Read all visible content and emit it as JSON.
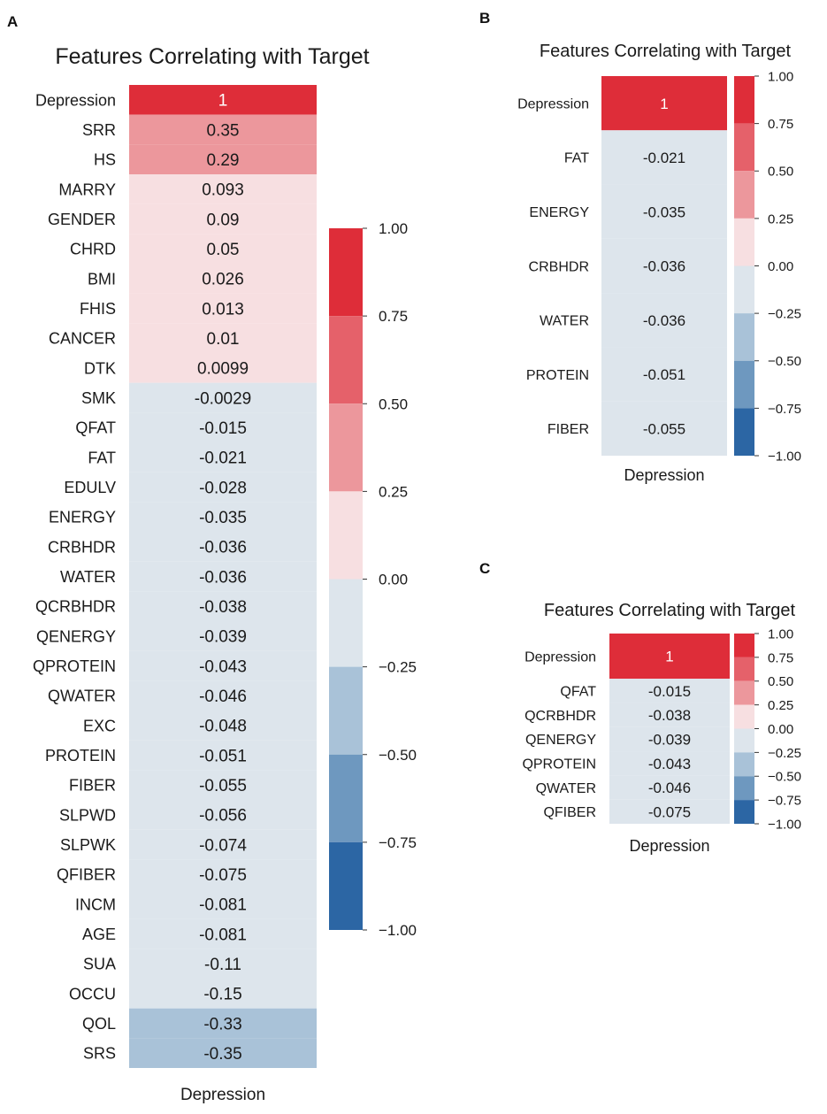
{
  "colorbar": {
    "ticks": [
      1.0,
      0.75,
      0.5,
      0.25,
      0.0,
      -0.25,
      -0.5,
      -0.75,
      -1.0
    ],
    "tick_labels": [
      "1.00",
      "0.75",
      "0.50",
      "0.25",
      "0.00",
      "−0.25",
      "−0.50",
      "−0.75",
      "−1.00"
    ],
    "bins": [
      {
        "from": 0.75,
        "to": 1.0,
        "color": "#de2d39"
      },
      {
        "from": 0.5,
        "to": 0.75,
        "color": "#e5616a"
      },
      {
        "from": 0.25,
        "to": 0.5,
        "color": "#ec979c"
      },
      {
        "from": 0.0,
        "to": 0.25,
        "color": "#f7dfe1"
      },
      {
        "from": -0.25,
        "to": 0.0,
        "color": "#dde5ec"
      },
      {
        "from": -0.5,
        "to": -0.25,
        "color": "#a9c2d8"
      },
      {
        "from": -0.75,
        "to": -0.5,
        "color": "#6e98bf"
      },
      {
        "from": -1.0,
        "to": -0.75,
        "color": "#2c66a4"
      }
    ]
  },
  "chart_data": [
    {
      "panel": "A",
      "type": "heatmap",
      "title": "Features Correlating with Target",
      "xlabel": "Depression",
      "column": "Depression",
      "vlim": [
        -1,
        1
      ],
      "rows": [
        "Depression",
        "SRR",
        "HS",
        "MARRY",
        "GENDER",
        "CHRD",
        "BMI",
        "FHIS",
        "CANCER",
        "DTK",
        "SMK",
        "QFAT",
        "FAT",
        "EDULV",
        "ENERGY",
        "CRBHDR",
        "WATER",
        "QCRBHDR",
        "QENERGY",
        "QPROTEIN",
        "QWATER",
        "EXC",
        "PROTEIN",
        "FIBER",
        "SLPWD",
        "SLPWK",
        "QFIBER",
        "INCM",
        "AGE",
        "SUA",
        "OCCU",
        "QOL",
        "SRS"
      ],
      "values": [
        1,
        0.35,
        0.29,
        0.093,
        0.09,
        0.05,
        0.026,
        0.013,
        0.01,
        0.0099,
        -0.0029,
        -0.015,
        -0.021,
        -0.028,
        -0.035,
        -0.036,
        -0.036,
        -0.038,
        -0.039,
        -0.043,
        -0.046,
        -0.048,
        -0.051,
        -0.055,
        -0.056,
        -0.074,
        -0.075,
        -0.081,
        -0.081,
        -0.11,
        -0.15,
        -0.33,
        -0.35
      ],
      "labels": [
        "1",
        "0.35",
        "0.29",
        "0.093",
        "0.09",
        "0.05",
        "0.026",
        "0.013",
        "0.01",
        "0.0099",
        "-0.0029",
        "-0.015",
        "-0.021",
        "-0.028",
        "-0.035",
        "-0.036",
        "-0.036",
        "-0.038",
        "-0.039",
        "-0.043",
        "-0.046",
        "-0.048",
        "-0.051",
        "-0.055",
        "-0.056",
        "-0.074",
        "-0.075",
        "-0.081",
        "-0.081",
        "-0.11",
        "-0.15",
        "-0.33",
        "-0.35"
      ]
    },
    {
      "panel": "B",
      "type": "heatmap",
      "title": "Features Correlating with Target",
      "xlabel": "Depression",
      "column": "Depression",
      "vlim": [
        -1,
        1
      ],
      "rows": [
        "Depression",
        "FAT",
        "ENERGY",
        "CRBHDR",
        "WATER",
        "PROTEIN",
        "FIBER"
      ],
      "values": [
        1,
        -0.021,
        -0.035,
        -0.036,
        -0.036,
        -0.051,
        -0.055
      ],
      "labels": [
        "1",
        "-0.021",
        "-0.035",
        "-0.036",
        "-0.036",
        "-0.051",
        "-0.055"
      ]
    },
    {
      "panel": "C",
      "type": "heatmap",
      "title": "Features Correlating with Target",
      "xlabel": "Depression",
      "column": "Depression",
      "vlim": [
        -1,
        1
      ],
      "rows": [
        "Depression",
        "QFAT",
        "QCRBHDR",
        "QENERGY",
        "QPROTEIN",
        "QWATER",
        "QFIBER"
      ],
      "values": [
        1,
        -0.015,
        -0.038,
        -0.039,
        -0.043,
        -0.046,
        -0.075
      ],
      "labels": [
        "1",
        "-0.015",
        "-0.038",
        "-0.039",
        "-0.043",
        "-0.046",
        "-0.075"
      ]
    }
  ]
}
